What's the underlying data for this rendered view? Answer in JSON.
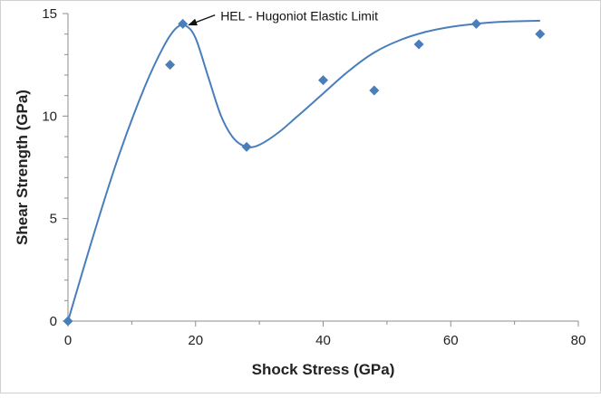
{
  "chart_data": {
    "type": "scatter",
    "title": "",
    "xlabel": "Shock Stress (GPa)",
    "ylabel": "Shear Strength (GPa)",
    "xlim": [
      0,
      80
    ],
    "ylim": [
      0,
      15
    ],
    "x_ticks": [
      0,
      20,
      40,
      60,
      80
    ],
    "y_ticks": [
      0,
      5,
      10,
      15
    ],
    "x_tick_labels": [
      "0",
      "20",
      "40",
      "60",
      "80"
    ],
    "y_tick_labels": [
      "0",
      "5",
      "10",
      "15"
    ],
    "grid": false,
    "legend": false,
    "series": [
      {
        "marker": "diamond",
        "color": "#4a7ebb",
        "x": [
          0,
          16,
          18,
          28,
          40,
          48,
          55,
          64,
          74
        ],
        "y": [
          0,
          12.5,
          14.5,
          8.5,
          11.75,
          11.25,
          13.5,
          14.5,
          14.0
        ]
      }
    ],
    "trend_curve": {
      "color": "#4a7ebb",
      "x": [
        0,
        4,
        8,
        12,
        15,
        17,
        18.5,
        20,
        22,
        24,
        26,
        28,
        30,
        33,
        36,
        40,
        44,
        48,
        52,
        56,
        60,
        64,
        68,
        74
      ],
      "y": [
        0,
        4.2,
        8.1,
        11.4,
        13.4,
        14.3,
        14.4,
        13.8,
        11.9,
        10.0,
        8.9,
        8.5,
        8.6,
        9.2,
        10.0,
        11.1,
        12.2,
        13.1,
        13.7,
        14.1,
        14.35,
        14.5,
        14.6,
        14.65
      ]
    },
    "annotations": [
      {
        "text": "HEL - Hugoniot Elastic Limit",
        "x": 18.5,
        "y": 14.4
      }
    ]
  }
}
